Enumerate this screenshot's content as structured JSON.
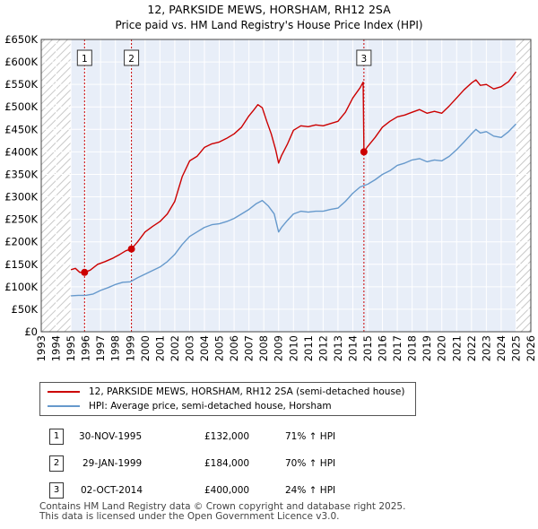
{
  "chart_data": {
    "type": "line",
    "title": "12, PARKSIDE MEWS, HORSHAM, RH12 2SA",
    "subtitle": "Price paid vs. HM Land Registry's House Price Index (HPI)",
    "xlabel": "",
    "ylabel": "",
    "xlim": [
      1993,
      2026
    ],
    "ylim": [
      0,
      650000
    ],
    "x_ticks": [
      "1993",
      "1994",
      "1995",
      "1996",
      "1997",
      "1998",
      "1999",
      "2000",
      "2001",
      "2002",
      "2003",
      "2004",
      "2005",
      "2006",
      "2007",
      "2008",
      "2009",
      "2010",
      "2011",
      "2012",
      "2013",
      "2014",
      "2015",
      "2016",
      "2017",
      "2018",
      "2019",
      "2020",
      "2021",
      "2022",
      "2023",
      "2024",
      "2025",
      "2026"
    ],
    "y_ticks": [
      {
        "value": 0,
        "label": "£0"
      },
      {
        "value": 50000,
        "label": "£50K"
      },
      {
        "value": 100000,
        "label": "£100K"
      },
      {
        "value": 150000,
        "label": "£150K"
      },
      {
        "value": 200000,
        "label": "£200K"
      },
      {
        "value": 250000,
        "label": "£250K"
      },
      {
        "value": 300000,
        "label": "£300K"
      },
      {
        "value": 350000,
        "label": "£350K"
      },
      {
        "value": 400000,
        "label": "£400K"
      },
      {
        "value": 450000,
        "label": "£450K"
      },
      {
        "value": 500000,
        "label": "£500K"
      },
      {
        "value": 550000,
        "label": "£550K"
      },
      {
        "value": 600000,
        "label": "£600K"
      },
      {
        "value": 650000,
        "label": "£650K"
      }
    ],
    "hatched_before": 1995.0,
    "hatched_after": 2025.0,
    "series": [
      {
        "name": "12, PARKSIDE MEWS, HORSHAM, RH12 2SA (semi-detached house)",
        "color": "#cc0000",
        "x": [
          1995.0,
          1995.3,
          1995.6,
          1995.92,
          1996.3,
          1996.8,
          1997.3,
          1997.8,
          1998.3,
          1998.7,
          1999.08,
          1999.5,
          2000.0,
          2000.5,
          2001.0,
          2001.5,
          2002.0,
          2002.5,
          2003.0,
          2003.5,
          2004.0,
          2004.5,
          2005.0,
          2005.5,
          2006.0,
          2006.5,
          2007.0,
          2007.3,
          2007.6,
          2007.9,
          2008.2,
          2008.5,
          2008.8,
          2009.0,
          2009.2,
          2009.6,
          2010.0,
          2010.5,
          2011.0,
          2011.5,
          2012.0,
          2012.5,
          2013.0,
          2013.5,
          2014.0,
          2014.5,
          2014.7,
          2014.75,
          2015.0,
          2015.5,
          2016.0,
          2016.5,
          2017.0,
          2017.5,
          2018.0,
          2018.5,
          2019.0,
          2019.5,
          2020.0,
          2020.5,
          2021.0,
          2021.5,
          2022.0,
          2022.3,
          2022.6,
          2023.0,
          2023.5,
          2024.0,
          2024.5,
          2025.0
        ],
        "values": [
          138000,
          141000,
          132000,
          132000,
          137000,
          150000,
          156000,
          163000,
          172000,
          180000,
          184000,
          200000,
          222000,
          234000,
          245000,
          262000,
          290000,
          345000,
          380000,
          390000,
          410000,
          418000,
          422000,
          430000,
          440000,
          455000,
          480000,
          492000,
          505000,
          498000,
          468000,
          440000,
          405000,
          375000,
          392000,
          418000,
          448000,
          458000,
          456000,
          460000,
          458000,
          463000,
          468000,
          488000,
          520000,
          543000,
          555000,
          400000,
          412000,
          432000,
          455000,
          468000,
          478000,
          482000,
          488000,
          494000,
          486000,
          490000,
          486000,
          502000,
          520000,
          538000,
          553000,
          560000,
          548000,
          550000,
          540000,
          545000,
          556000,
          578000
        ]
      },
      {
        "name": "HPI: Average price, semi-detached house, Horsham",
        "color": "#6699cc",
        "x": [
          1995.0,
          1995.5,
          1996.0,
          1996.5,
          1997.0,
          1997.5,
          1998.0,
          1998.5,
          1999.0,
          1999.5,
          2000.0,
          2000.5,
          2001.0,
          2001.5,
          2002.0,
          2002.5,
          2003.0,
          2003.5,
          2004.0,
          2004.5,
          2005.0,
          2005.5,
          2006.0,
          2006.5,
          2007.0,
          2007.5,
          2007.9,
          2008.3,
          2008.7,
          2009.0,
          2009.2,
          2009.6,
          2010.0,
          2010.5,
          2011.0,
          2011.5,
          2012.0,
          2012.5,
          2013.0,
          2013.5,
          2014.0,
          2014.5,
          2015.0,
          2015.5,
          2016.0,
          2016.5,
          2017.0,
          2017.5,
          2018.0,
          2018.5,
          2019.0,
          2019.5,
          2020.0,
          2020.5,
          2021.0,
          2021.5,
          2022.0,
          2022.3,
          2022.6,
          2023.0,
          2023.5,
          2024.0,
          2024.5,
          2025.0
        ],
        "values": [
          80000,
          81000,
          81000,
          84000,
          92000,
          98000,
          105000,
          110000,
          111000,
          120000,
          128000,
          136000,
          144000,
          156000,
          172000,
          194000,
          212000,
          222000,
          232000,
          238000,
          240000,
          245000,
          252000,
          262000,
          272000,
          285000,
          292000,
          280000,
          262000,
          222000,
          232000,
          248000,
          262000,
          268000,
          266000,
          268000,
          268000,
          272000,
          275000,
          290000,
          308000,
          322000,
          328000,
          338000,
          350000,
          358000,
          370000,
          375000,
          382000,
          385000,
          378000,
          382000,
          380000,
          390000,
          405000,
          422000,
          440000,
          450000,
          442000,
          445000,
          435000,
          432000,
          445000,
          462000
        ]
      }
    ],
    "sales": [
      {
        "num": "1",
        "x": 1995.92,
        "value": 132000
      },
      {
        "num": "2",
        "x": 1999.08,
        "value": 184000
      },
      {
        "num": "3",
        "x": 2014.75,
        "value": 400000
      }
    ]
  },
  "legend": {
    "property": "12, PARKSIDE MEWS, HORSHAM, RH12 2SA (semi-detached house)",
    "hpi": "HPI: Average price, semi-detached house, Horsham"
  },
  "transactions": [
    {
      "num": "1",
      "date": "30-NOV-1995",
      "price": "£132,000",
      "hpi": "71% ↑ HPI"
    },
    {
      "num": "2",
      "date": "29-JAN-1999",
      "price": "£184,000",
      "hpi": "70% ↑ HPI"
    },
    {
      "num": "3",
      "date": "02-OCT-2014",
      "price": "£400,000",
      "hpi": "24% ↑ HPI"
    }
  ],
  "footer": {
    "line1": "Contains HM Land Registry data © Crown copyright and database right 2025.",
    "line2": "This data is licensed under the Open Government Licence v3.0."
  },
  "colors": {
    "property": "#cc0000",
    "hpi": "#6699cc",
    "plot_bg": "#e8eef8",
    "grid": "#ffffff"
  }
}
